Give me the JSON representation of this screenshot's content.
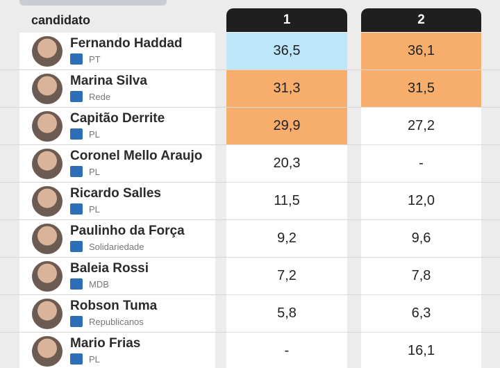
{
  "table": {
    "header": [
      "candidato",
      "1",
      "2"
    ],
    "rows": [
      {
        "name": "Fernando Haddad",
        "party": "PT",
        "cells": [
          "36,5",
          "36,1"
        ],
        "colors": [
          "#bde6f8",
          "#f7ae6c"
        ]
      },
      {
        "name": "Marina Silva",
        "party": "Rede",
        "cells": [
          "31,3",
          "31,5"
        ],
        "colors": [
          "#f7ae6c",
          "#f7ae6c"
        ]
      },
      {
        "name": "Capitão Derrite",
        "party": "PL",
        "cells": [
          "29,9",
          "27,2"
        ],
        "colors": [
          "#f7ae6c",
          null
        ]
      },
      {
        "name": "Coronel Mello Araujo",
        "party": "PL",
        "cells": [
          "20,3",
          "-"
        ],
        "colors": [
          null,
          null
        ]
      },
      {
        "name": "Ricardo Salles",
        "party": "PL",
        "cells": [
          "11,5",
          "12,0"
        ],
        "colors": [
          null,
          null
        ]
      },
      {
        "name": "Paulinho da Força",
        "party": "Solidariedade",
        "cells": [
          "9,2",
          "9,6"
        ],
        "colors": [
          null,
          null
        ]
      },
      {
        "name": "Baleia Rossi",
        "party": "MDB",
        "cells": [
          "7,2",
          "7,8"
        ],
        "colors": [
          null,
          null
        ]
      },
      {
        "name": "Robson Tuma",
        "party": "Republicanos",
        "cells": [
          "5,8",
          "6,3"
        ],
        "colors": [
          null,
          null
        ]
      },
      {
        "name": "Mario Frias",
        "party": "PL",
        "cells": [
          "-",
          "16,1"
        ],
        "colors": [
          null,
          null
        ]
      }
    ]
  }
}
